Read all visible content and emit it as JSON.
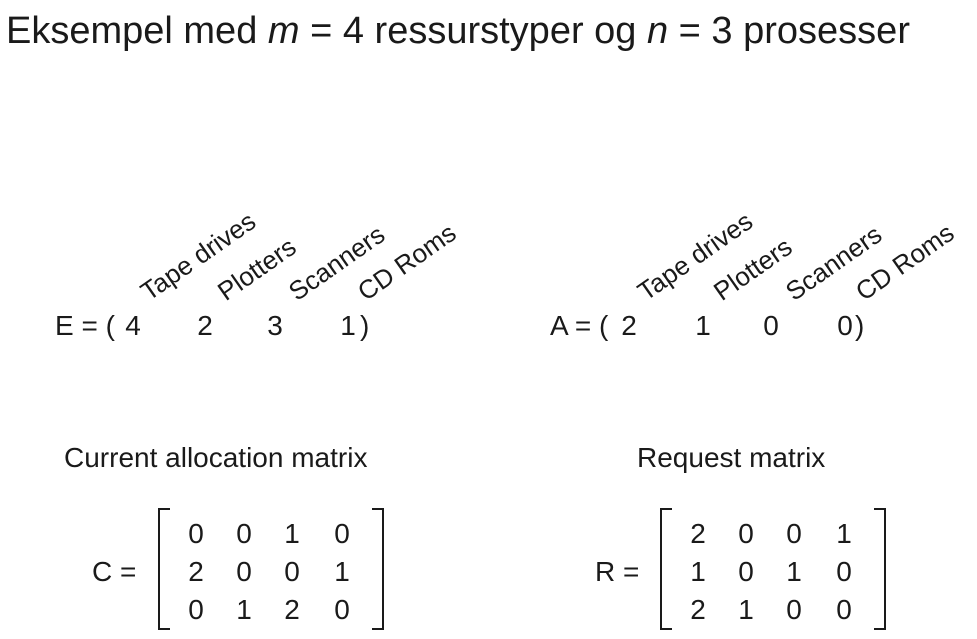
{
  "title": {
    "prefix": "Eksempel med ",
    "m": "m",
    "mid": " = 4 ressurstyper og ",
    "n": "n",
    "suffix": " = 3 prosesser"
  },
  "headers": [
    "Tape drives",
    "Plotters",
    "Scanners",
    "CD Roms"
  ],
  "E": {
    "label": "E = (",
    "values": [
      "4",
      "2",
      "3",
      "1"
    ],
    "close": ")"
  },
  "A": {
    "label": "A = (",
    "values": [
      "2",
      "1",
      "0",
      "0"
    ],
    "close": ")"
  },
  "current": {
    "caption": "Current allocation matrix",
    "label": "C =",
    "rows": [
      [
        "0",
        "0",
        "1",
        "0"
      ],
      [
        "2",
        "0",
        "0",
        "1"
      ],
      [
        "0",
        "1",
        "2",
        "0"
      ]
    ]
  },
  "request": {
    "caption": "Request matrix",
    "label": "R =",
    "rows": [
      [
        "2",
        "0",
        "0",
        "1"
      ],
      [
        "1",
        "0",
        "1",
        "0"
      ],
      [
        "2",
        "1",
        "0",
        "0"
      ]
    ]
  }
}
